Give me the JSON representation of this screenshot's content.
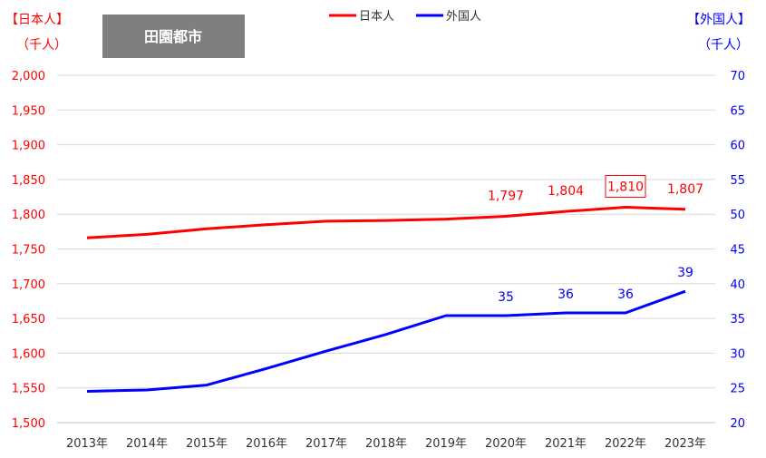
{
  "title": "田園都市",
  "colors": {
    "japanese": "#ff0000",
    "foreign": "#0000ff",
    "title_bg": "#7f7f7f",
    "grid": "#d9d9d9"
  },
  "axis_units": {
    "left_line1": "【日本人】",
    "left_line2": "（千人）",
    "right_line1": "【外国人】",
    "right_line2": "（千人）"
  },
  "legend": {
    "japanese": "日本人",
    "foreign": "外国人"
  },
  "chart_data": {
    "type": "line",
    "title": "田園都市",
    "categories": [
      "2013年",
      "2014年",
      "2015年",
      "2016年",
      "2017年",
      "2018年",
      "2019年",
      "2020年",
      "2021年",
      "2022年",
      "2023年"
    ],
    "series": [
      {
        "name": "日本人",
        "axis": "left",
        "color": "#ff0000",
        "values": [
          1766,
          1771,
          1779,
          1785,
          1790,
          1791,
          1793,
          1797,
          1804,
          1810,
          1807
        ],
        "data_labels": [
          null,
          null,
          null,
          null,
          null,
          null,
          null,
          "1,797",
          "1,804",
          "1,810",
          "1,807"
        ],
        "highlight_index": 9
      },
      {
        "name": "外国人",
        "axis": "right",
        "color": "#0000ff",
        "values": [
          24.5,
          24.7,
          25.4,
          27.8,
          30.3,
          32.7,
          35.4,
          35.4,
          35.8,
          35.8,
          38.9
        ],
        "data_labels": [
          null,
          null,
          null,
          null,
          null,
          null,
          null,
          "35",
          "36",
          "36",
          "39"
        ]
      }
    ],
    "y_left": {
      "min": 1500,
      "max": 2000,
      "step": 50,
      "tick_labels": [
        "1,500",
        "1,550",
        "1,600",
        "1,650",
        "1,700",
        "1,750",
        "1,800",
        "1,850",
        "1,900",
        "1,950",
        "2,000"
      ]
    },
    "y_right": {
      "min": 20,
      "max": 70,
      "step": 5,
      "tick_labels": [
        "20",
        "25",
        "30",
        "35",
        "40",
        "45",
        "50",
        "55",
        "60",
        "65",
        "70"
      ]
    },
    "grid": true,
    "legend_position": "top"
  }
}
